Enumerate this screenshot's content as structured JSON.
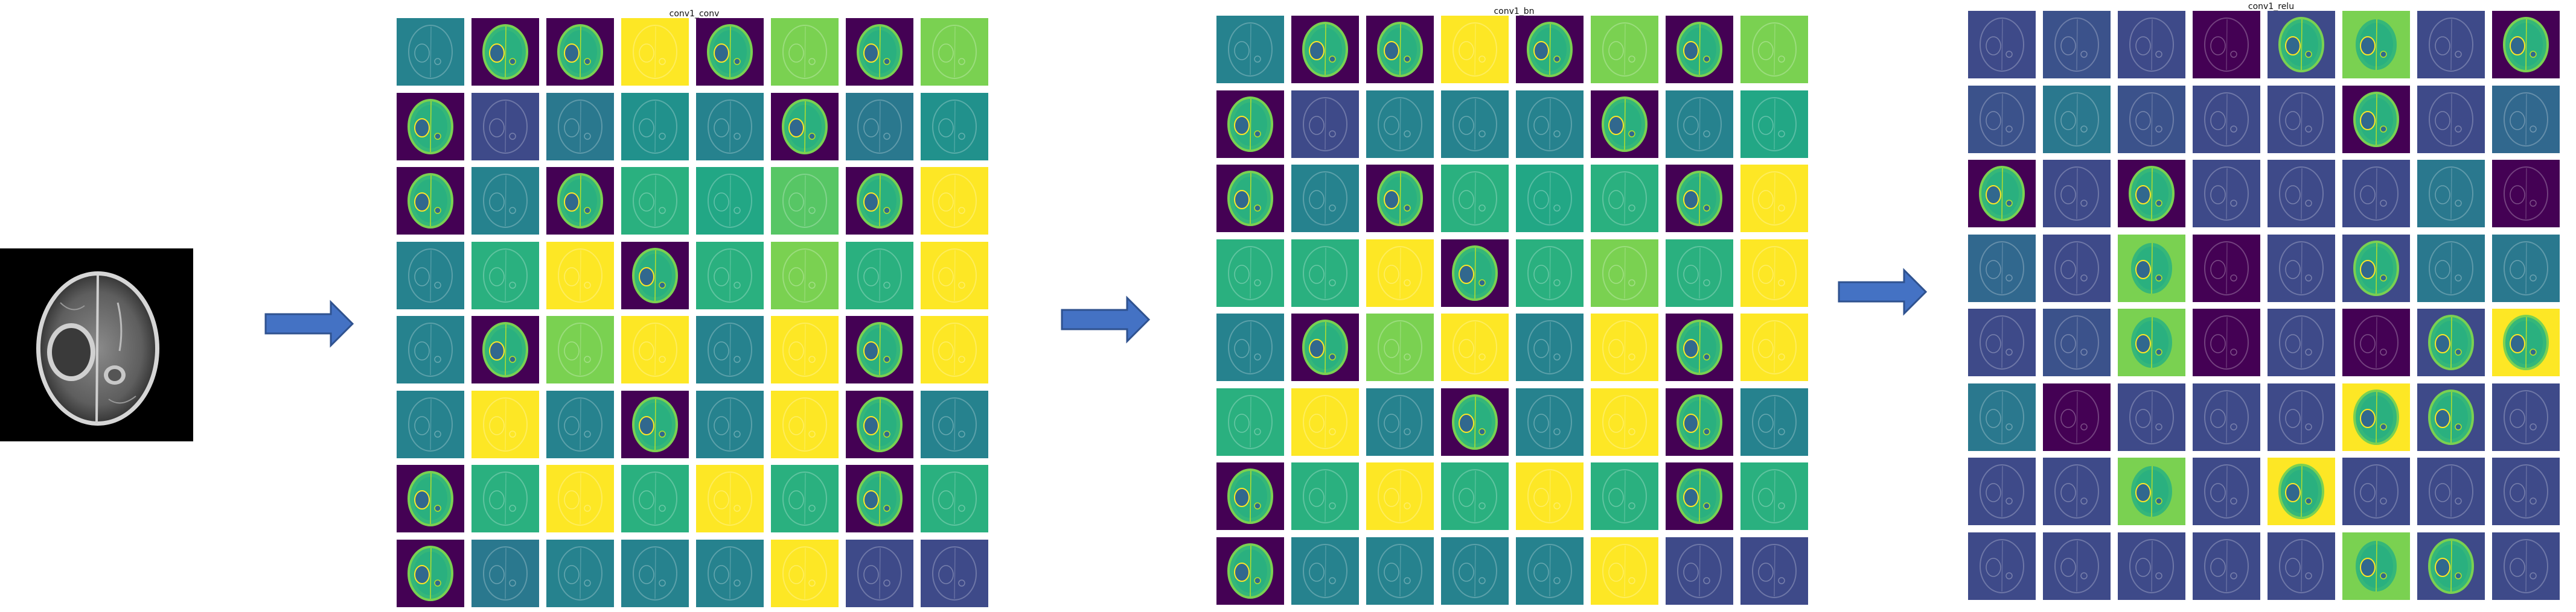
{
  "panels": [
    {
      "title": "conv1_conv",
      "tiles": [
        [
          "#26828e",
          "#440154",
          "#440154",
          "#fde725",
          "#440154",
          "#7ad151",
          "#440154",
          "#7ad151"
        ],
        [
          "#440154",
          "#3e4a89",
          "#2a788e",
          "#21918c",
          "#26828e",
          "#440154",
          "#2a788e",
          "#21918c"
        ],
        [
          "#440154",
          "#26828e",
          "#440154",
          "#2ab07f",
          "#22a785",
          "#57c665",
          "#440154",
          "#fde725"
        ],
        [
          "#26828e",
          "#2ab07f",
          "#fde725",
          "#440154",
          "#2ab07f",
          "#7ad151",
          "#2ab07f",
          "#fde725"
        ],
        [
          "#26828e",
          "#440154",
          "#7ad151",
          "#fde725",
          "#26828e",
          "#fde725",
          "#440154",
          "#fde725"
        ],
        [
          "#26828e",
          "#fde725",
          "#26828e",
          "#440154",
          "#26828e",
          "#fde725",
          "#440154",
          "#26828e"
        ],
        [
          "#440154",
          "#2ab07f",
          "#fde725",
          "#2ab07f",
          "#fde725",
          "#2ab07f",
          "#440154",
          "#2ab07f"
        ],
        [
          "#440154",
          "#2a788e",
          "#26828e",
          "#26828e",
          "#26828e",
          "#fde725",
          "#3e4a89",
          "#3e4a89"
        ]
      ],
      "dark": [
        [
          false,
          true,
          true,
          false,
          true,
          false,
          true,
          false
        ],
        [
          true,
          false,
          false,
          false,
          false,
          true,
          false,
          false
        ],
        [
          true,
          false,
          true,
          false,
          false,
          false,
          true,
          false
        ],
        [
          false,
          false,
          false,
          true,
          false,
          false,
          false,
          false
        ],
        [
          false,
          true,
          false,
          false,
          false,
          false,
          true,
          false
        ],
        [
          false,
          false,
          false,
          true,
          false,
          false,
          true,
          false
        ],
        [
          true,
          false,
          false,
          false,
          false,
          false,
          true,
          false
        ],
        [
          true,
          false,
          false,
          false,
          false,
          false,
          false,
          false
        ]
      ]
    },
    {
      "title": "conv1_bn",
      "tiles": [
        [
          "#26828e",
          "#440154",
          "#440154",
          "#fde725",
          "#440154",
          "#7ad151",
          "#440154",
          "#7ad151"
        ],
        [
          "#440154",
          "#3e4a89",
          "#26828e",
          "#26828e",
          "#26828e",
          "#440154",
          "#26828e",
          "#22a785"
        ],
        [
          "#440154",
          "#26828e",
          "#440154",
          "#2ab07f",
          "#22a785",
          "#2ab07f",
          "#440154",
          "#fde725"
        ],
        [
          "#2ab07f",
          "#2ab07f",
          "#fde725",
          "#440154",
          "#2ab07f",
          "#7ad151",
          "#2ab07f",
          "#fde725"
        ],
        [
          "#26828e",
          "#440154",
          "#7ad151",
          "#fde725",
          "#26828e",
          "#fde725",
          "#440154",
          "#fde725"
        ],
        [
          "#2ab07f",
          "#fde725",
          "#26828e",
          "#440154",
          "#26828e",
          "#fde725",
          "#440154",
          "#26828e"
        ],
        [
          "#440154",
          "#2ab07f",
          "#fde725",
          "#2ab07f",
          "#fde725",
          "#2ab07f",
          "#440154",
          "#2ab07f"
        ],
        [
          "#440154",
          "#26828e",
          "#26828e",
          "#26828e",
          "#26828e",
          "#fde725",
          "#3e4a89",
          "#3e4a89"
        ]
      ],
      "dark": [
        [
          false,
          true,
          true,
          false,
          true,
          false,
          true,
          false
        ],
        [
          true,
          false,
          false,
          false,
          false,
          true,
          false,
          false
        ],
        [
          true,
          false,
          true,
          false,
          false,
          false,
          true,
          false
        ],
        [
          false,
          false,
          false,
          true,
          false,
          false,
          false,
          false
        ],
        [
          false,
          true,
          false,
          false,
          false,
          false,
          true,
          false
        ],
        [
          false,
          false,
          false,
          true,
          false,
          false,
          true,
          false
        ],
        [
          true,
          false,
          false,
          false,
          false,
          false,
          true,
          false
        ],
        [
          true,
          false,
          false,
          false,
          false,
          false,
          false,
          false
        ]
      ]
    },
    {
      "title": "conv1_relu",
      "tiles": [
        [
          "#3e4a89",
          "#3b528b",
          "#3e4a89",
          "#440154",
          "#3e4a89",
          "#7ad151",
          "#3e4a89",
          "#440154"
        ],
        [
          "#3b528b",
          "#2a788e",
          "#3b528b",
          "#3e4a89",
          "#3e4a89",
          "#440154",
          "#3e4a89",
          "#31688e"
        ],
        [
          "#440154",
          "#3e4a89",
          "#440154",
          "#3e4a89",
          "#3e4a89",
          "#3e4a89",
          "#2a788e",
          "#440154"
        ],
        [
          "#31688e",
          "#3e4a89",
          "#7ad151",
          "#440154",
          "#3e4a89",
          "#3e4a89",
          "#2a788e",
          "#2a788e"
        ],
        [
          "#3e4a89",
          "#3b528b",
          "#7ad151",
          "#440154",
          "#3e4a89",
          "#440154",
          "#3e4a89",
          "#fde725"
        ],
        [
          "#2a788e",
          "#440154",
          "#3e4a89",
          "#3e4a89",
          "#3e4a89",
          "#fde725",
          "#3e4a89",
          "#3e4a89"
        ],
        [
          "#3e4a89",
          "#3e4a89",
          "#7ad151",
          "#3e4a89",
          "#fde725",
          "#3e4a89",
          "#3e4a89",
          "#3e4a89"
        ],
        [
          "#3e4a89",
          "#3e4a89",
          "#3e4a89",
          "#3e4a89",
          "#3e4a89",
          "#7ad151",
          "#3e4a89",
          "#3e4a89"
        ]
      ],
      "dark": [
        [
          false,
          false,
          false,
          false,
          true,
          true,
          false,
          true
        ],
        [
          false,
          false,
          false,
          false,
          false,
          true,
          false,
          false
        ],
        [
          true,
          false,
          true,
          false,
          false,
          false,
          false,
          false
        ],
        [
          false,
          false,
          true,
          false,
          false,
          true,
          false,
          false
        ],
        [
          false,
          false,
          true,
          false,
          false,
          false,
          true,
          true
        ],
        [
          false,
          false,
          false,
          false,
          false,
          true,
          true,
          false
        ],
        [
          false,
          false,
          true,
          false,
          true,
          false,
          false,
          false
        ],
        [
          false,
          false,
          false,
          false,
          false,
          true,
          true,
          false
        ]
      ]
    }
  ]
}
